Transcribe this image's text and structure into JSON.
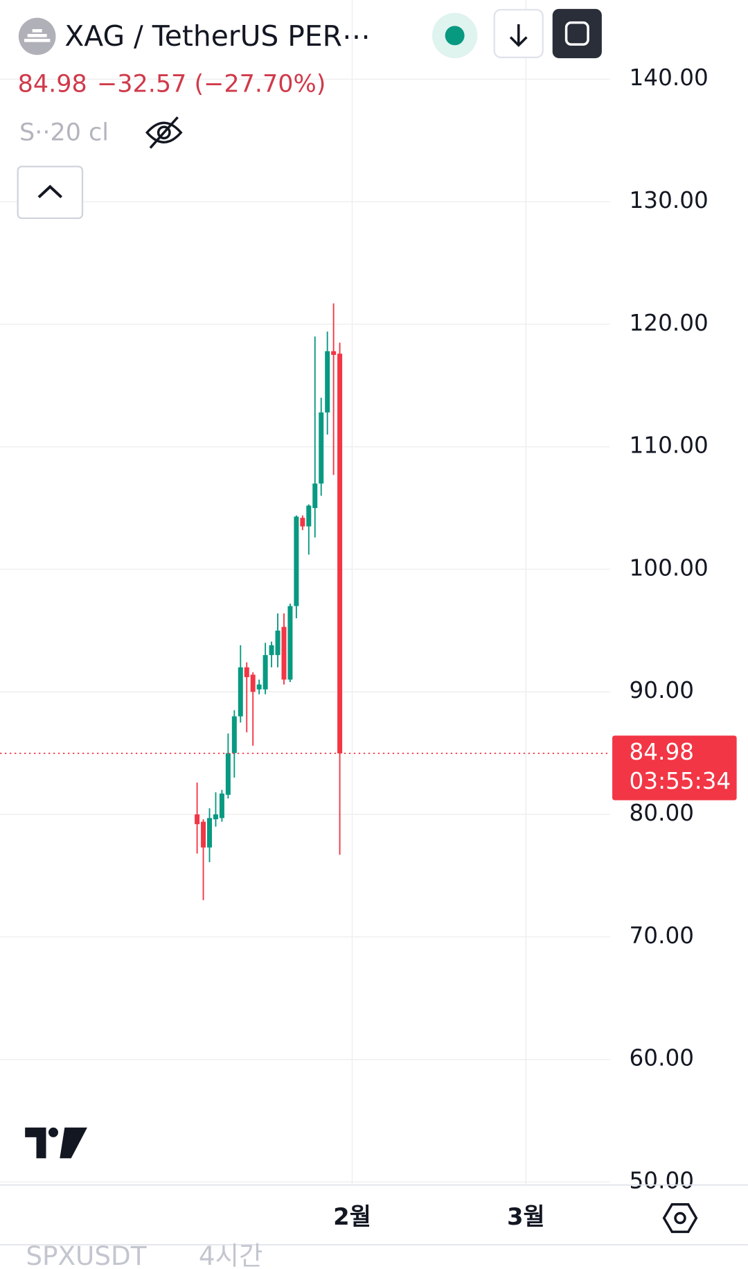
{
  "header": {
    "symbol": "XAG / TetherUS PER⋯",
    "price": "84.98",
    "change": "−32.57 (−27.70%)",
    "indicator": "S··20 cl",
    "bottom_symbol": "SPXUSDT",
    "bottom_interval": "4시간"
  },
  "chart_data": {
    "type": "candlestick",
    "categories": [
      null,
      null,
      null,
      null,
      null,
      null,
      null,
      null,
      null,
      null,
      null,
      null,
      null,
      null,
      null,
      null,
      null,
      null,
      null,
      null,
      null,
      null,
      null,
      null,
      null,
      "2월",
      null,
      null,
      null,
      null,
      null,
      null,
      null,
      null,
      null,
      null,
      null,
      null,
      null,
      null,
      null,
      null,
      null,
      null,
      null,
      null,
      null,
      null,
      null,
      null,
      null,
      null,
      null,
      "3월",
      null,
      null,
      null,
      null,
      null,
      null,
      null,
      null,
      null,
      null,
      null,
      null,
      null
    ],
    "series": [
      {
        "name": "open",
        "values": [
          80.0,
          79.4,
          77.3,
          79.6,
          79.7,
          81.6,
          85.0,
          88.0,
          92.0,
          91.4,
          90.2,
          90.2,
          93.0,
          93.0,
          95.3,
          91.0,
          97.0,
          104.2,
          103.5,
          105.0,
          107.0,
          112.8,
          117.8,
          117.6,
          null,
          null,
          null,
          null,
          null,
          null,
          null,
          null,
          null,
          null,
          null,
          null,
          null,
          null,
          null,
          null,
          null,
          null,
          null,
          null,
          null,
          null,
          null,
          null,
          null,
          null,
          null,
          null,
          null,
          null,
          null,
          null,
          null,
          null,
          null,
          null,
          null,
          null,
          null,
          null,
          null,
          null,
          null
        ]
      },
      {
        "name": "high",
        "values": [
          82.6,
          79.6,
          80.5,
          81.8,
          82.0,
          86.6,
          88.5,
          93.8,
          92.4,
          91.6,
          91.0,
          94.0,
          94.1,
          96.4,
          96.4,
          97.2,
          104.4,
          104.4,
          105.3,
          119.0,
          114.0,
          119.4,
          121.7,
          118.5,
          null,
          null,
          null,
          null,
          null,
          null,
          null,
          null,
          null,
          null,
          null,
          null,
          null,
          null,
          null,
          null,
          null,
          null,
          null,
          null,
          null,
          null,
          null,
          null,
          null,
          null,
          null,
          null,
          null,
          null,
          null,
          null,
          null,
          null,
          null,
          null,
          null,
          null,
          null,
          null,
          null,
          null,
          null
        ]
      },
      {
        "name": "low",
        "values": [
          76.8,
          73.0,
          76.1,
          79.0,
          79.4,
          81.3,
          83.0,
          87.5,
          86.7,
          85.6,
          89.8,
          89.8,
          92.0,
          92.0,
          90.6,
          90.8,
          96.0,
          103.2,
          101.2,
          102.6,
          106.0,
          111.0,
          107.7,
          76.7,
          null,
          null,
          null,
          null,
          null,
          null,
          null,
          null,
          null,
          null,
          null,
          null,
          null,
          null,
          null,
          null,
          null,
          null,
          null,
          null,
          null,
          null,
          null,
          null,
          null,
          null,
          null,
          null,
          null,
          null,
          null,
          null,
          null,
          null,
          null,
          null,
          null,
          null,
          null,
          null,
          null,
          null,
          null
        ]
      },
      {
        "name": "close",
        "values": [
          79.2,
          77.3,
          79.7,
          80.0,
          81.7,
          85.0,
          88.0,
          92.0,
          91.2,
          90.0,
          90.6,
          93.0,
          93.8,
          95.0,
          91.0,
          97.0,
          104.3,
          103.5,
          105.2,
          107.0,
          112.8,
          117.8,
          117.5,
          84.98,
          null,
          null,
          null,
          null,
          null,
          null,
          null,
          null,
          null,
          null,
          null,
          null,
          null,
          null,
          null,
          null,
          null,
          null,
          null,
          null,
          null,
          null,
          null,
          null,
          null,
          null,
          null,
          null,
          null,
          null,
          null,
          null,
          null,
          null,
          null,
          null,
          null,
          null,
          null,
          null,
          null,
          null,
          null
        ]
      }
    ],
    "up_color": "#089981",
    "down_color": "#f23645",
    "ylim": [
      49.76,
      146.46
    ],
    "yticks": [
      {
        "value": 50,
        "label": "50.00"
      },
      {
        "value": 60,
        "label": "60.00"
      },
      {
        "value": 70,
        "label": "70.00"
      },
      {
        "value": 80,
        "label": "80.00"
      },
      {
        "value": 90,
        "label": "90.00"
      },
      {
        "value": 100,
        "label": "100.00"
      },
      {
        "value": 110,
        "label": "110.00"
      },
      {
        "value": 120,
        "label": "120.00"
      },
      {
        "value": 130,
        "label": "130.00"
      },
      {
        "value": 140,
        "label": "140.00"
      }
    ],
    "grid": true,
    "last_price": 84.98,
    "countdown": "03:55:34"
  }
}
